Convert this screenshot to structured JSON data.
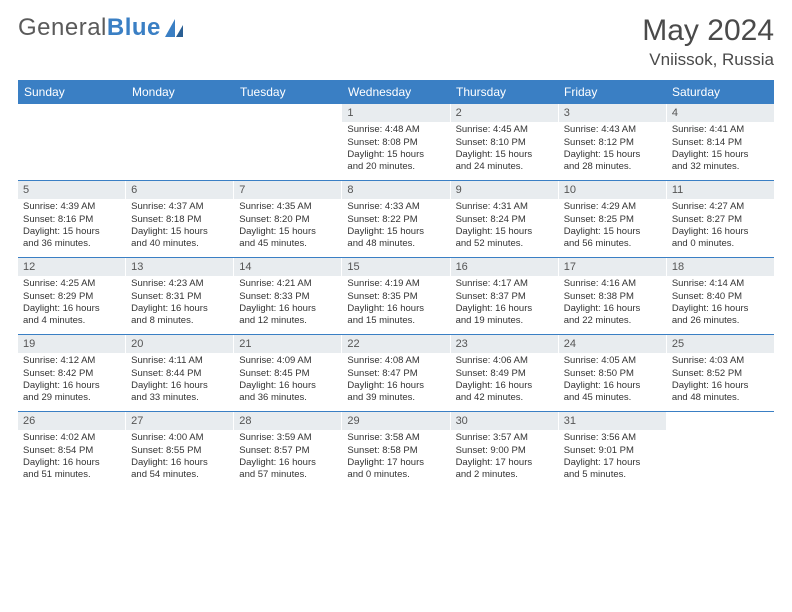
{
  "logo": {
    "part1": "General",
    "part2": "Blue"
  },
  "title": "May 2024",
  "location": "Vniissok, Russia",
  "colors": {
    "header_bg": "#3a7fc4",
    "daynum_bg": "#e8ecef",
    "text": "#333333",
    "border": "#3a7fc4",
    "background": "#ffffff"
  },
  "typography": {
    "title_fontsize": 30,
    "location_fontsize": 17,
    "header_fontsize": 12,
    "cell_fontsize": 9.5
  },
  "layout": {
    "columns": 7,
    "rows": 5
  },
  "days_of_week": [
    "Sunday",
    "Monday",
    "Tuesday",
    "Wednesday",
    "Thursday",
    "Friday",
    "Saturday"
  ],
  "weeks": [
    [
      {
        "empty": true
      },
      {
        "empty": true
      },
      {
        "empty": true
      },
      {
        "day": "1",
        "sunrise": "Sunrise: 4:48 AM",
        "sunset": "Sunset: 8:08 PM",
        "daylight1": "Daylight: 15 hours",
        "daylight2": "and 20 minutes."
      },
      {
        "day": "2",
        "sunrise": "Sunrise: 4:45 AM",
        "sunset": "Sunset: 8:10 PM",
        "daylight1": "Daylight: 15 hours",
        "daylight2": "and 24 minutes."
      },
      {
        "day": "3",
        "sunrise": "Sunrise: 4:43 AM",
        "sunset": "Sunset: 8:12 PM",
        "daylight1": "Daylight: 15 hours",
        "daylight2": "and 28 minutes."
      },
      {
        "day": "4",
        "sunrise": "Sunrise: 4:41 AM",
        "sunset": "Sunset: 8:14 PM",
        "daylight1": "Daylight: 15 hours",
        "daylight2": "and 32 minutes."
      }
    ],
    [
      {
        "day": "5",
        "sunrise": "Sunrise: 4:39 AM",
        "sunset": "Sunset: 8:16 PM",
        "daylight1": "Daylight: 15 hours",
        "daylight2": "and 36 minutes."
      },
      {
        "day": "6",
        "sunrise": "Sunrise: 4:37 AM",
        "sunset": "Sunset: 8:18 PM",
        "daylight1": "Daylight: 15 hours",
        "daylight2": "and 40 minutes."
      },
      {
        "day": "7",
        "sunrise": "Sunrise: 4:35 AM",
        "sunset": "Sunset: 8:20 PM",
        "daylight1": "Daylight: 15 hours",
        "daylight2": "and 45 minutes."
      },
      {
        "day": "8",
        "sunrise": "Sunrise: 4:33 AM",
        "sunset": "Sunset: 8:22 PM",
        "daylight1": "Daylight: 15 hours",
        "daylight2": "and 48 minutes."
      },
      {
        "day": "9",
        "sunrise": "Sunrise: 4:31 AM",
        "sunset": "Sunset: 8:24 PM",
        "daylight1": "Daylight: 15 hours",
        "daylight2": "and 52 minutes."
      },
      {
        "day": "10",
        "sunrise": "Sunrise: 4:29 AM",
        "sunset": "Sunset: 8:25 PM",
        "daylight1": "Daylight: 15 hours",
        "daylight2": "and 56 minutes."
      },
      {
        "day": "11",
        "sunrise": "Sunrise: 4:27 AM",
        "sunset": "Sunset: 8:27 PM",
        "daylight1": "Daylight: 16 hours",
        "daylight2": "and 0 minutes."
      }
    ],
    [
      {
        "day": "12",
        "sunrise": "Sunrise: 4:25 AM",
        "sunset": "Sunset: 8:29 PM",
        "daylight1": "Daylight: 16 hours",
        "daylight2": "and 4 minutes."
      },
      {
        "day": "13",
        "sunrise": "Sunrise: 4:23 AM",
        "sunset": "Sunset: 8:31 PM",
        "daylight1": "Daylight: 16 hours",
        "daylight2": "and 8 minutes."
      },
      {
        "day": "14",
        "sunrise": "Sunrise: 4:21 AM",
        "sunset": "Sunset: 8:33 PM",
        "daylight1": "Daylight: 16 hours",
        "daylight2": "and 12 minutes."
      },
      {
        "day": "15",
        "sunrise": "Sunrise: 4:19 AM",
        "sunset": "Sunset: 8:35 PM",
        "daylight1": "Daylight: 16 hours",
        "daylight2": "and 15 minutes."
      },
      {
        "day": "16",
        "sunrise": "Sunrise: 4:17 AM",
        "sunset": "Sunset: 8:37 PM",
        "daylight1": "Daylight: 16 hours",
        "daylight2": "and 19 minutes."
      },
      {
        "day": "17",
        "sunrise": "Sunrise: 4:16 AM",
        "sunset": "Sunset: 8:38 PM",
        "daylight1": "Daylight: 16 hours",
        "daylight2": "and 22 minutes."
      },
      {
        "day": "18",
        "sunrise": "Sunrise: 4:14 AM",
        "sunset": "Sunset: 8:40 PM",
        "daylight1": "Daylight: 16 hours",
        "daylight2": "and 26 minutes."
      }
    ],
    [
      {
        "day": "19",
        "sunrise": "Sunrise: 4:12 AM",
        "sunset": "Sunset: 8:42 PM",
        "daylight1": "Daylight: 16 hours",
        "daylight2": "and 29 minutes."
      },
      {
        "day": "20",
        "sunrise": "Sunrise: 4:11 AM",
        "sunset": "Sunset: 8:44 PM",
        "daylight1": "Daylight: 16 hours",
        "daylight2": "and 33 minutes."
      },
      {
        "day": "21",
        "sunrise": "Sunrise: 4:09 AM",
        "sunset": "Sunset: 8:45 PM",
        "daylight1": "Daylight: 16 hours",
        "daylight2": "and 36 minutes."
      },
      {
        "day": "22",
        "sunrise": "Sunrise: 4:08 AM",
        "sunset": "Sunset: 8:47 PM",
        "daylight1": "Daylight: 16 hours",
        "daylight2": "and 39 minutes."
      },
      {
        "day": "23",
        "sunrise": "Sunrise: 4:06 AM",
        "sunset": "Sunset: 8:49 PM",
        "daylight1": "Daylight: 16 hours",
        "daylight2": "and 42 minutes."
      },
      {
        "day": "24",
        "sunrise": "Sunrise: 4:05 AM",
        "sunset": "Sunset: 8:50 PM",
        "daylight1": "Daylight: 16 hours",
        "daylight2": "and 45 minutes."
      },
      {
        "day": "25",
        "sunrise": "Sunrise: 4:03 AM",
        "sunset": "Sunset: 8:52 PM",
        "daylight1": "Daylight: 16 hours",
        "daylight2": "and 48 minutes."
      }
    ],
    [
      {
        "day": "26",
        "sunrise": "Sunrise: 4:02 AM",
        "sunset": "Sunset: 8:54 PM",
        "daylight1": "Daylight: 16 hours",
        "daylight2": "and 51 minutes."
      },
      {
        "day": "27",
        "sunrise": "Sunrise: 4:00 AM",
        "sunset": "Sunset: 8:55 PM",
        "daylight1": "Daylight: 16 hours",
        "daylight2": "and 54 minutes."
      },
      {
        "day": "28",
        "sunrise": "Sunrise: 3:59 AM",
        "sunset": "Sunset: 8:57 PM",
        "daylight1": "Daylight: 16 hours",
        "daylight2": "and 57 minutes."
      },
      {
        "day": "29",
        "sunrise": "Sunrise: 3:58 AM",
        "sunset": "Sunset: 8:58 PM",
        "daylight1": "Daylight: 17 hours",
        "daylight2": "and 0 minutes."
      },
      {
        "day": "30",
        "sunrise": "Sunrise: 3:57 AM",
        "sunset": "Sunset: 9:00 PM",
        "daylight1": "Daylight: 17 hours",
        "daylight2": "and 2 minutes."
      },
      {
        "day": "31",
        "sunrise": "Sunrise: 3:56 AM",
        "sunset": "Sunset: 9:01 PM",
        "daylight1": "Daylight: 17 hours",
        "daylight2": "and 5 minutes."
      },
      {
        "empty": true
      }
    ]
  ]
}
